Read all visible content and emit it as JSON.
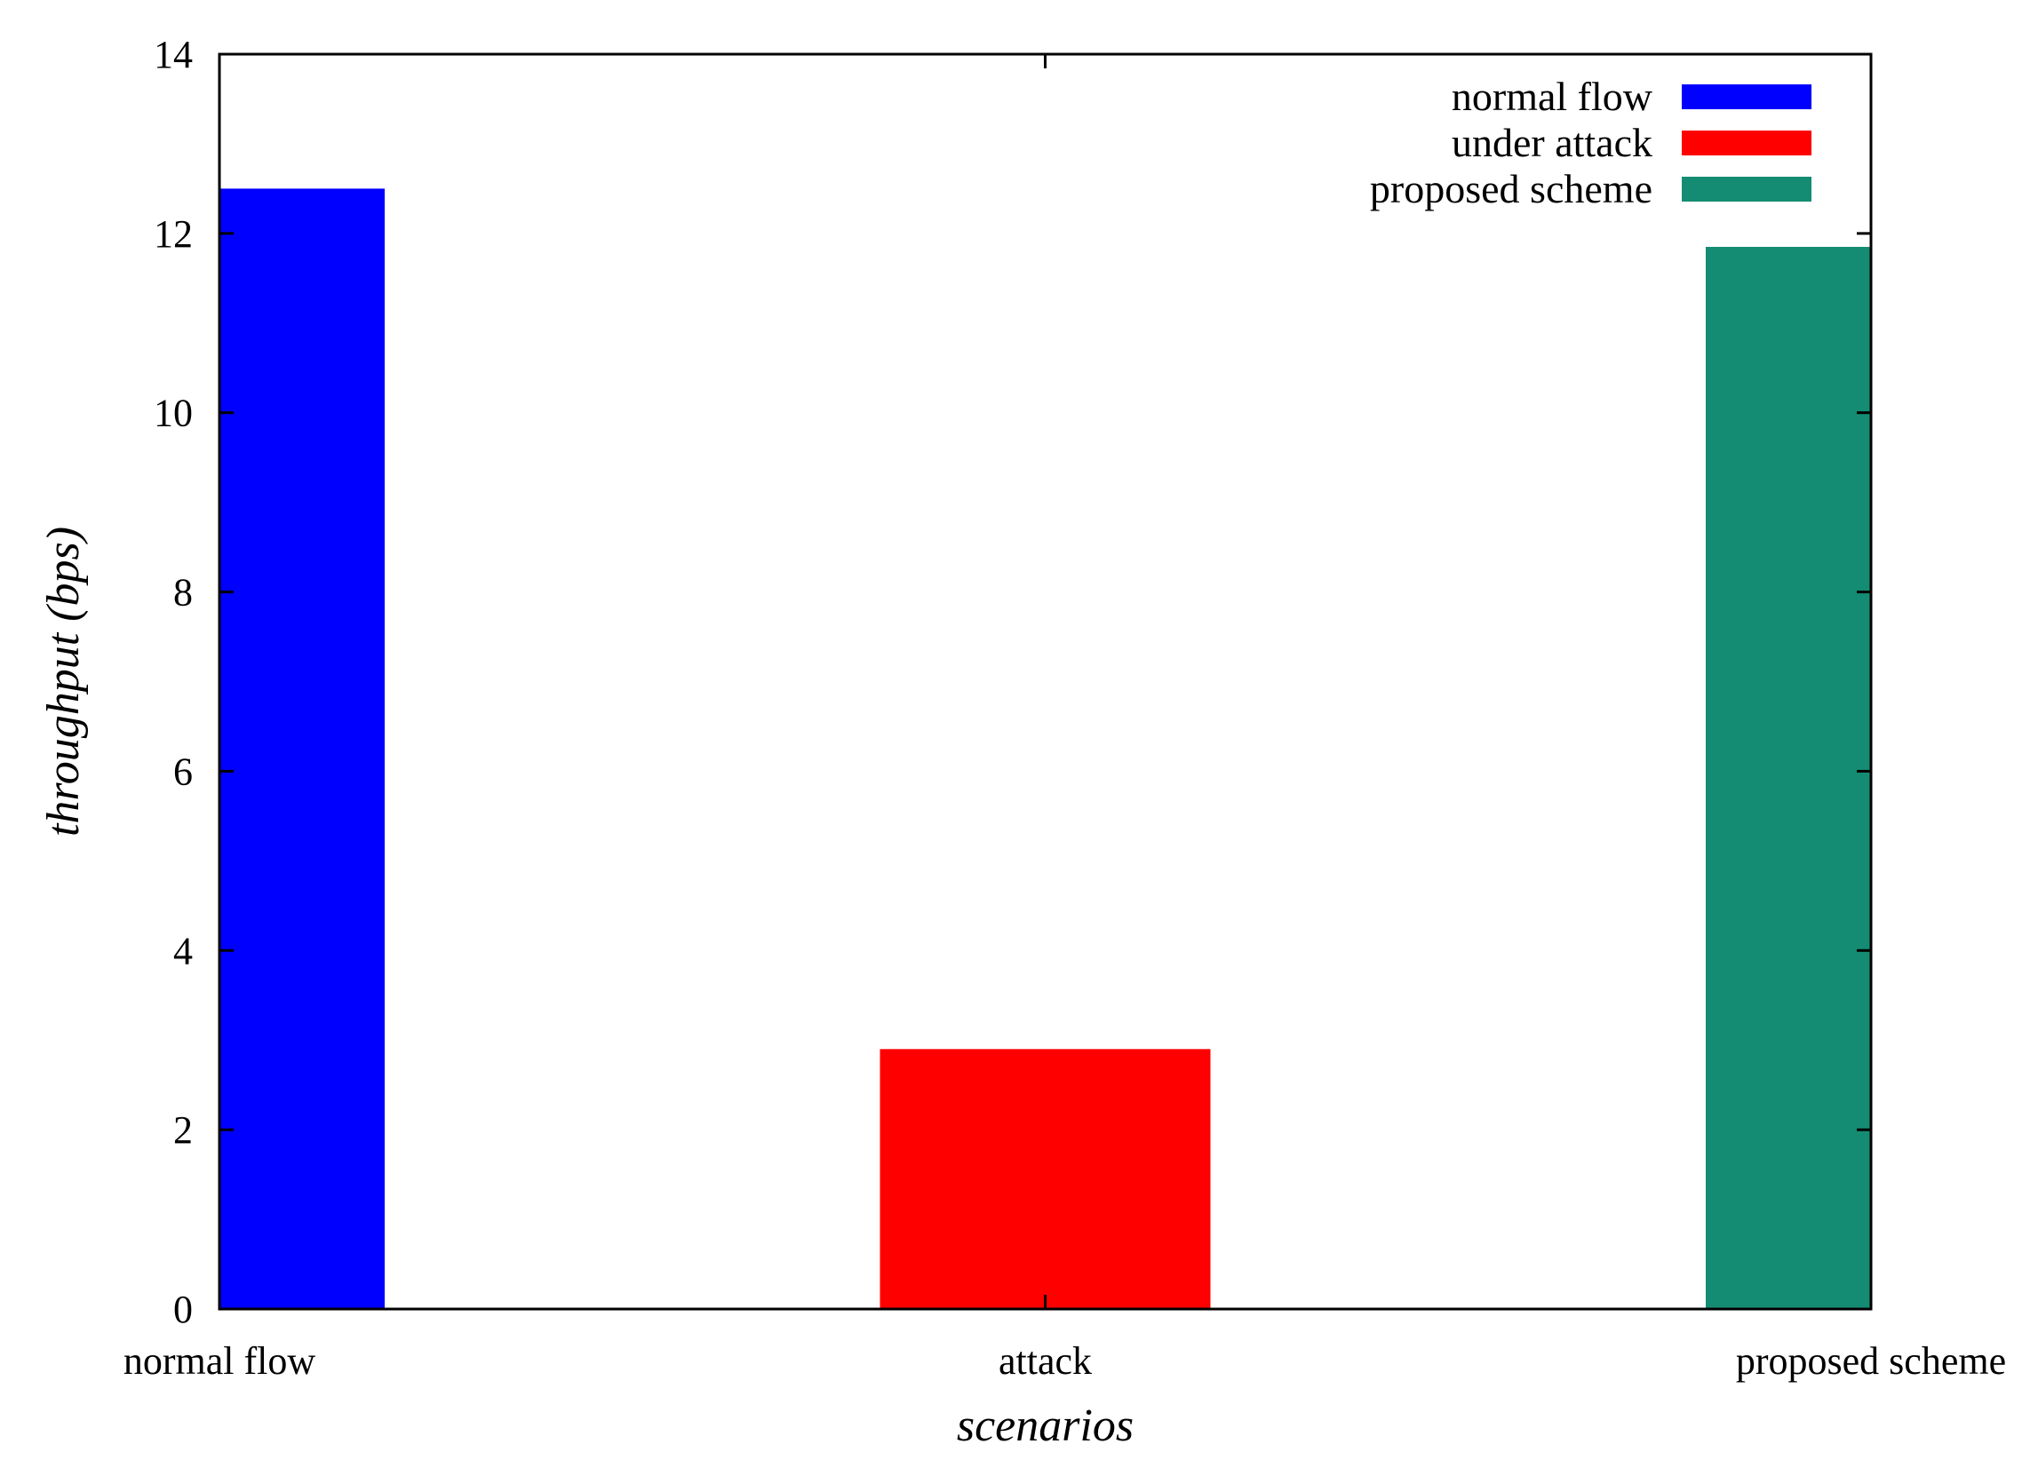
{
  "chart_data": {
    "type": "bar",
    "categories": [
      "normal flow",
      "attack",
      "proposed scheme"
    ],
    "series": [
      {
        "name": "normal flow",
        "values": [
          12.5,
          null,
          null
        ],
        "color": "#0000ff"
      },
      {
        "name": "under attack",
        "values": [
          null,
          2.9,
          null
        ],
        "color": "#ff0000"
      },
      {
        "name": "proposed scheme",
        "values": [
          null,
          null,
          11.85
        ],
        "color": "#148c73"
      }
    ],
    "xlabel": "scenarios",
    "ylabel": "throughput (bps)",
    "ylim": [
      0,
      14
    ],
    "yticks": [
      "0",
      "2",
      "4",
      "6",
      "8",
      "10",
      "12",
      "14"
    ],
    "grid": false,
    "legend_position": "top-right"
  }
}
